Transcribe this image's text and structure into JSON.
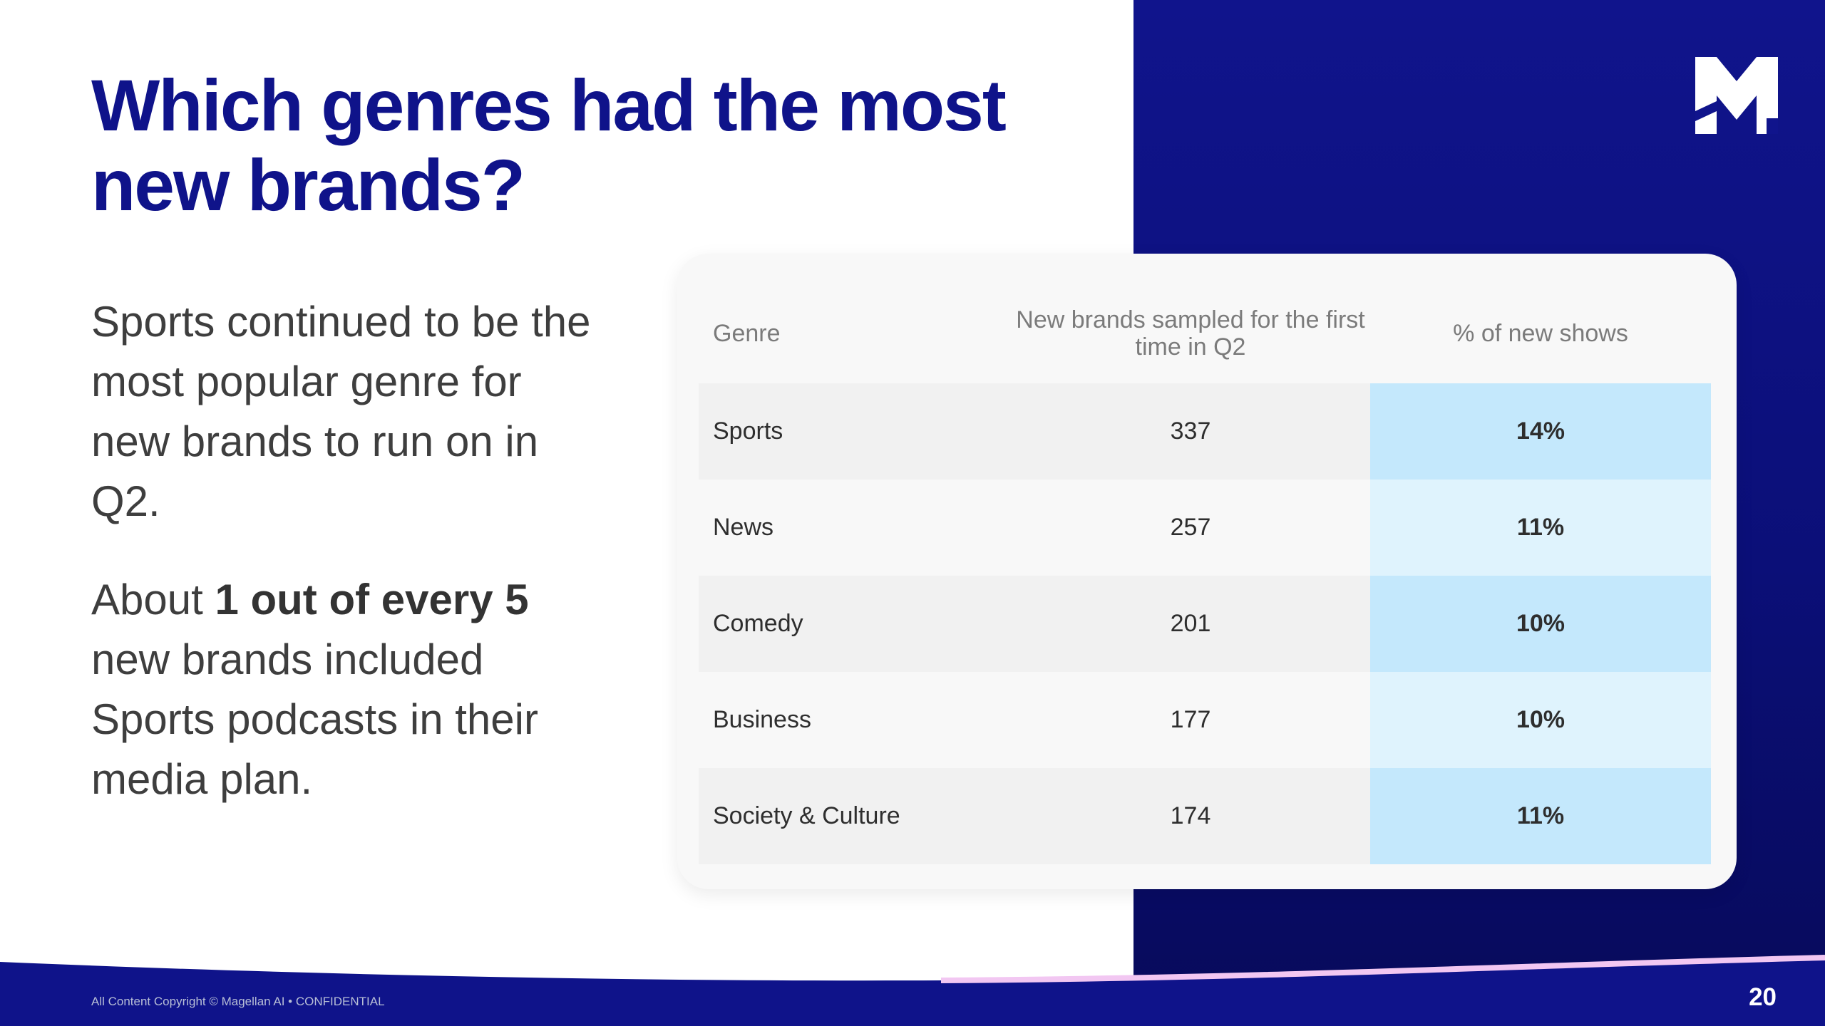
{
  "slide": {
    "title": "Which genres had the most new brands?",
    "body": {
      "paragraph1": "Sports continued to be the most popular genre for new brands to run on in Q2.",
      "paragraph2_prefix": "About ",
      "paragraph2_bold": "1 out of every 5",
      "paragraph2_suffix": " new brands included Sports podcasts in their media plan."
    },
    "table": {
      "headers": {
        "genre": "Genre",
        "new_brands": "New brands sampled for the first time in Q2",
        "pct_new_shows": "% of new shows"
      },
      "rows": [
        {
          "genre": "Sports",
          "count": "337",
          "pct": "14%"
        },
        {
          "genre": "News",
          "count": "257",
          "pct": "11%"
        },
        {
          "genre": "Comedy",
          "count": "201",
          "pct": "10%"
        },
        {
          "genre": "Business",
          "count": "177",
          "pct": "10%"
        },
        {
          "genre": "Society & Culture",
          "count": "174",
          "pct": "11%"
        }
      ]
    },
    "footer": {
      "copyright": "All Content Copyright © Magellan AI • CONFIDENTIAL",
      "page_number": "20"
    },
    "brand": {
      "logo_icon": "magellan-m-logo-icon",
      "primary_color": "#0f138a",
      "accent_color": "#c4e8fc"
    }
  }
}
